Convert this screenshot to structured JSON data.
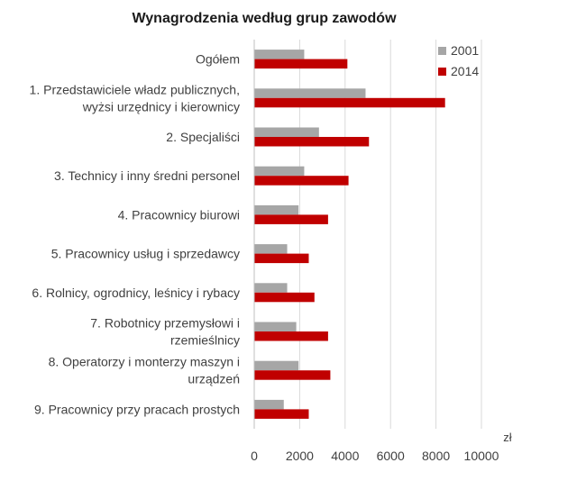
{
  "chart_data": {
    "type": "bar",
    "orientation": "horizontal",
    "title": "Wynagrodzenia według grup zawodów",
    "x_unit_label": "zł",
    "xlim": [
      0,
      10000
    ],
    "x_ticks": [
      0,
      2000,
      4000,
      6000,
      8000,
      10000
    ],
    "x_tick_labels": [
      "0",
      "2000",
      "4000",
      "6000",
      "8000",
      "10000"
    ],
    "grid": "vertical",
    "legend_position": "top-right",
    "categories": [
      [
        "Ogółem"
      ],
      [
        "1. Przedstawiciele władz publicznych,",
        "wyżsi urzędnicy i kierownicy"
      ],
      [
        "2. Specjaliści"
      ],
      [
        "3. Technicy i inny średni personel"
      ],
      [
        "4. Pracownicy biurowi"
      ],
      [
        "5. Pracownicy usług i sprzedawcy"
      ],
      [
        "6. Rolnicy, ogrodnicy, leśnicy i rybacy"
      ],
      [
        "7. Robotnicy przemysłowi i",
        "rzemieślnicy"
      ],
      [
        "8. Operatorzy i monterzy maszyn i",
        "urządzeń"
      ],
      [
        "9. Pracownicy przy pracach prostych"
      ]
    ],
    "series": [
      {
        "name": "2001",
        "color": "#a6a6a6",
        "values": [
          2200,
          4900,
          2850,
          2200,
          1950,
          1450,
          1450,
          1850,
          1950,
          1300
        ]
      },
      {
        "name": "2014",
        "color": "#c00000",
        "values": [
          4100,
          8400,
          5050,
          4150,
          3250,
          2400,
          2650,
          3250,
          3350,
          2400
        ]
      }
    ]
  }
}
